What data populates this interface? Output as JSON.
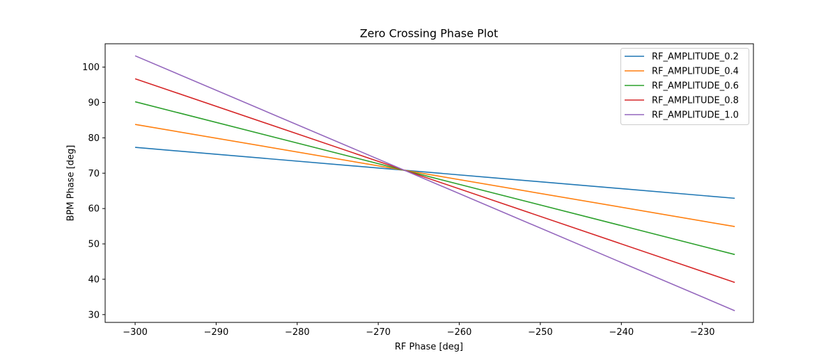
{
  "chart_data": {
    "type": "line",
    "title": "Zero Crossing Phase Plot",
    "xlabel": "RF Phase [deg]",
    "ylabel": "BPM Phase [deg]",
    "xlim": [
      -303.7,
      -223.7
    ],
    "ylim": [
      27.8,
      106.6
    ],
    "xticks": [
      -300,
      -290,
      -280,
      -270,
      -260,
      -250,
      -240,
      -230
    ],
    "xtick_labels": [
      "−300",
      "−290",
      "−280",
      "−270",
      "−260",
      "−250",
      "−240",
      "−230"
    ],
    "yticks": [
      30,
      40,
      50,
      60,
      70,
      80,
      90,
      100
    ],
    "ytick_labels": [
      "30",
      "40",
      "50",
      "60",
      "70",
      "80",
      "90",
      "100"
    ],
    "grid": false,
    "legend_position": "top-right",
    "x": [
      -300,
      -226
    ],
    "series": [
      {
        "name": "RF_AMPLITUDE_0.2",
        "color": "#1f77b4",
        "values": [
          77.3,
          62.9
        ]
      },
      {
        "name": "RF_AMPLITUDE_0.4",
        "color": "#ff7f0e",
        "values": [
          83.8,
          54.9
        ]
      },
      {
        "name": "RF_AMPLITUDE_0.6",
        "color": "#2ca02c",
        "values": [
          90.2,
          47.0
        ]
      },
      {
        "name": "RF_AMPLITUDE_0.8",
        "color": "#d62728",
        "values": [
          96.7,
          39.1
        ]
      },
      {
        "name": "RF_AMPLITUDE_1.0",
        "color": "#9467bd",
        "values": [
          103.2,
          31.1
        ]
      }
    ]
  }
}
